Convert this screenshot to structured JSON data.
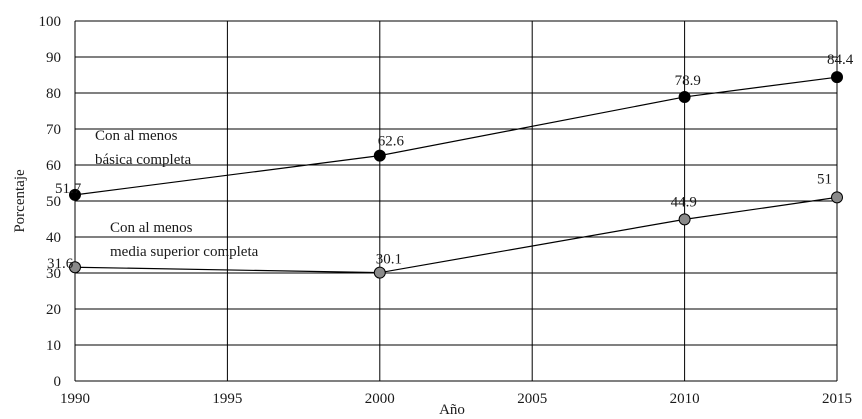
{
  "chart_data": {
    "type": "line",
    "xlabel": "Año",
    "ylabel": "Porcentaje",
    "x": [
      1990,
      2000,
      2010,
      2015
    ],
    "xticks": [
      1990,
      1995,
      2000,
      2005,
      2010,
      2015
    ],
    "xlim": [
      1990,
      2015
    ],
    "ylim": [
      0,
      100
    ],
    "yticks": [
      0,
      10,
      20,
      30,
      40,
      50,
      60,
      70,
      80,
      90,
      100
    ],
    "grid": true,
    "series": [
      {
        "name": "Con al menos básica completa",
        "label_lines": [
          "Con al menos",
          "básica completa"
        ],
        "values": [
          51.7,
          62.6,
          78.9,
          84.4
        ],
        "data_labels": [
          "51.7",
          "62.6",
          "78.9",
          "84.4"
        ],
        "marker_color": "#000000"
      },
      {
        "name": "Con al menos media superior completa",
        "label_lines": [
          "Con al menos",
          "media superior completa"
        ],
        "values": [
          31.6,
          30.1,
          44.9,
          51
        ],
        "data_labels": [
          "31.6",
          "30.1",
          "44.9",
          "51"
        ],
        "marker_color": "#8a8a8a"
      }
    ]
  }
}
